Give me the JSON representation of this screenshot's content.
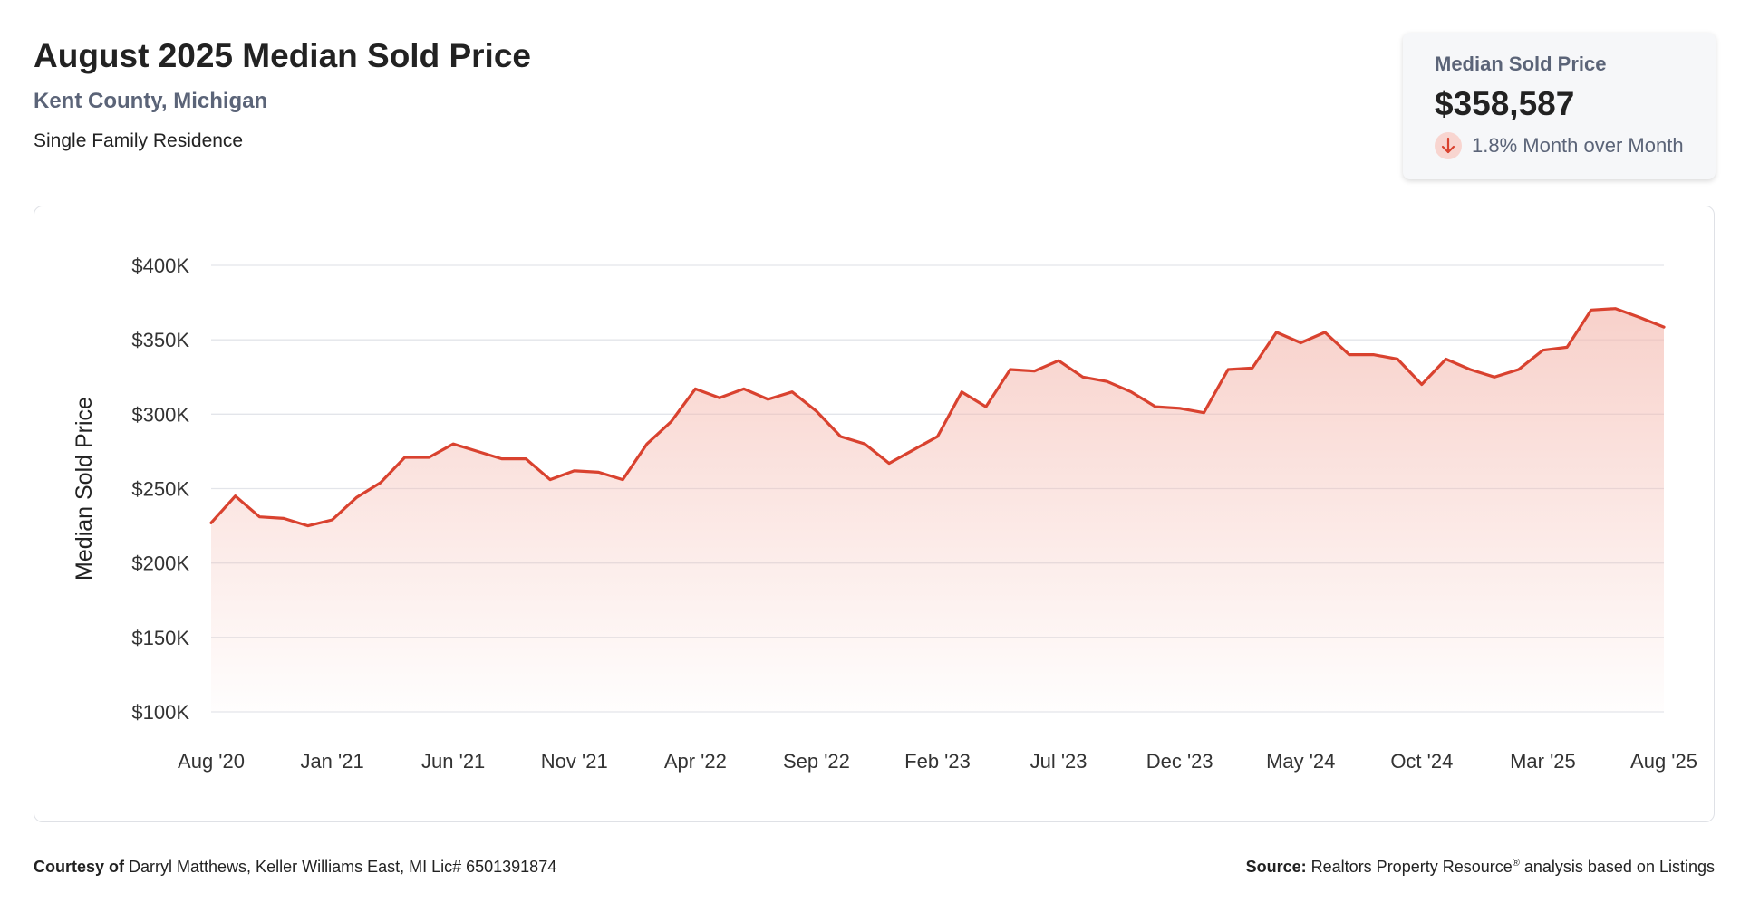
{
  "header": {
    "title": "August 2025 Median Sold Price",
    "location": "Kent County, Michigan",
    "property_type": "Single Family Residence"
  },
  "kpi": {
    "label": "Median Sold Price",
    "value": "$358,587",
    "change": "1.8% Month over Month",
    "change_direction": "down",
    "down_color": "#d9422f"
  },
  "footer": {
    "courtesy_label": "Courtesy of",
    "courtesy_text": "Darryl Matthews, Keller Williams East, MI Lic# 6501391874",
    "source_label": "Source:",
    "source_text": "Realtors Property Resource",
    "source_mark": "®",
    "source_suffix": " analysis based on Listings"
  },
  "chart_data": {
    "type": "area",
    "ylabel": "Median Sold Price",
    "ylim": [
      100000,
      400000
    ],
    "yticks": [
      100000,
      150000,
      200000,
      250000,
      300000,
      350000,
      400000
    ],
    "ytick_labels": [
      "$100K",
      "$150K",
      "$200K",
      "$250K",
      "$300K",
      "$350K",
      "$400K"
    ],
    "xtick_labels": [
      "Aug '20",
      "Jan '21",
      "Jun '21",
      "Nov '21",
      "Apr '22",
      "Sep '22",
      "Feb '23",
      "Jul '23",
      "Dec '23",
      "May '24",
      "Oct '24",
      "Mar '25",
      "Aug '25"
    ],
    "x_start": "2020-08",
    "x_end": "2025-08",
    "grid": true,
    "line_color": "#d9422f",
    "fill_color": "#f4b8ae",
    "series": [
      {
        "values": [
          227000,
          245000,
          231000,
          230000,
          225000,
          229000,
          244000,
          254000,
          271000,
          271000,
          280000,
          275000,
          270000,
          270000,
          256000,
          262000,
          261000,
          256000,
          280000,
          295000,
          317000,
          311000,
          317000,
          310000,
          315000,
          302000,
          285000,
          280000,
          267000,
          276000,
          285000,
          315000,
          305000,
          330000,
          329000,
          336000,
          325000,
          322000,
          315000,
          305000,
          304000,
          301000,
          330000,
          331000,
          355000,
          348000,
          355000,
          340000,
          340000,
          337000,
          320000,
          337000,
          330000,
          325000,
          330000,
          343000,
          345000,
          370000,
          371000,
          365000,
          358587
        ]
      }
    ]
  }
}
